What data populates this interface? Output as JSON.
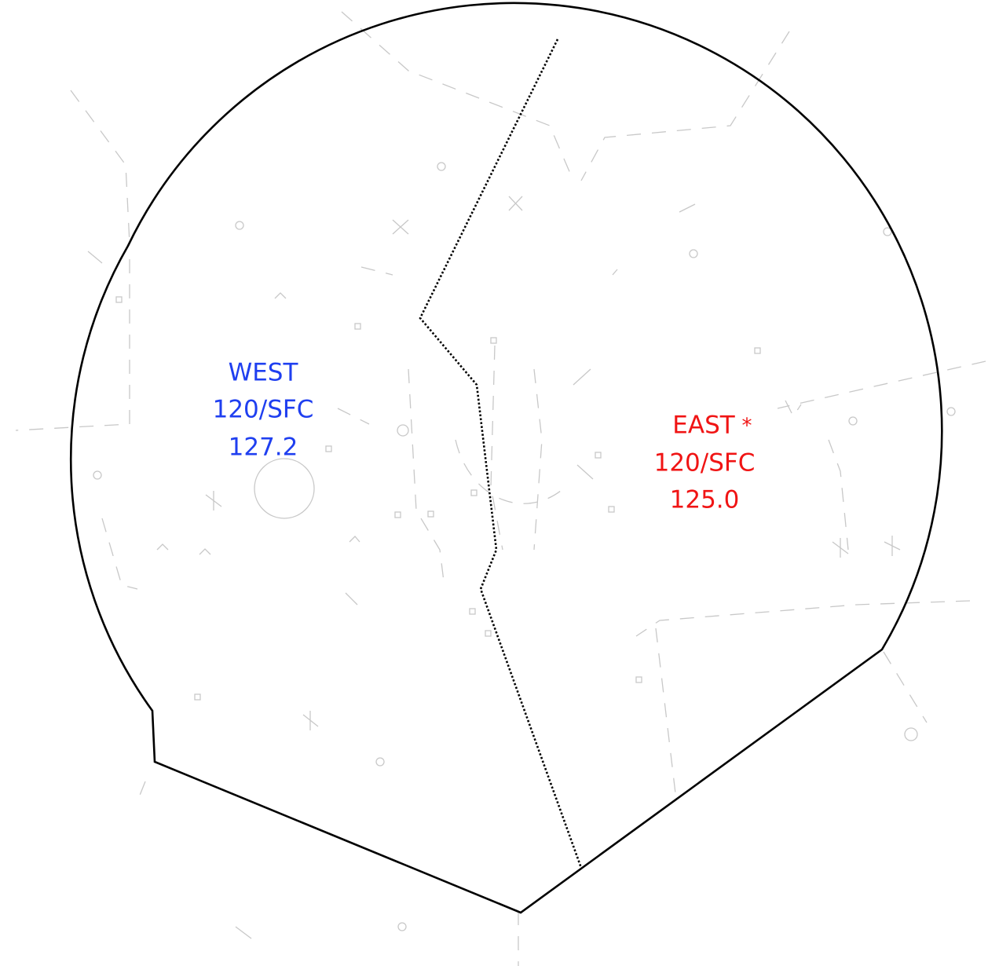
{
  "west": {
    "name": "WEST",
    "altitude": "120/SFC",
    "frequency": "127.2"
  },
  "east": {
    "name": "EAST",
    "marker": "*",
    "altitude": "120/SFC",
    "frequency": "125.0"
  }
}
